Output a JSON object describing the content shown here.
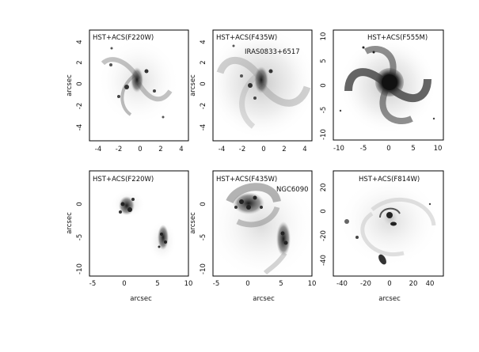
{
  "figure": {
    "axis_unit_label": "arcsec",
    "panels": [
      {
        "id": "top-left",
        "filter_label": "HST+ACS(F220W)",
        "object_label": "",
        "x_ticks": [
          "-4",
          "-2",
          "0",
          "2",
          "4"
        ],
        "y_ticks": [
          "4",
          "2",
          "0",
          "-2",
          "-4"
        ],
        "x_axis_label": "",
        "y_axis_label": "arcsec"
      },
      {
        "id": "top-middle",
        "filter_label": "HST+ACS(F435W)",
        "object_label": "IRAS0833+6517",
        "x_ticks": [
          "-4",
          "-2",
          "0",
          "2",
          "4"
        ],
        "y_ticks": [
          "4",
          "2",
          "0",
          "-2",
          "-4"
        ],
        "x_axis_label": "",
        "y_axis_label": "arcsec"
      },
      {
        "id": "top-right",
        "filter_label": "HST+ACS(F555M)",
        "object_label": "",
        "x_ticks": [
          "-10",
          "-5",
          "0",
          "5",
          "10"
        ],
        "y_ticks": [
          "10",
          "5",
          "0",
          "-5",
          "-10"
        ],
        "x_axis_label": "",
        "y_axis_label": ""
      },
      {
        "id": "bottom-left",
        "filter_label": "HST+ACS(F220W)",
        "object_label": "",
        "x_ticks": [
          "-5",
          "0",
          "5",
          "10"
        ],
        "y_ticks": [
          "0",
          "-5",
          "-10"
        ],
        "x_axis_label": "arcsec",
        "y_axis_label": "arcsec"
      },
      {
        "id": "bottom-middle",
        "filter_label": "HST+ACS(F435W)",
        "object_label": "NGC6090",
        "x_ticks": [
          "-5",
          "0",
          "5",
          "10"
        ],
        "y_ticks": [
          "0",
          "-5",
          "-10"
        ],
        "x_axis_label": "arcsec",
        "y_axis_label": "arcsec"
      },
      {
        "id": "bottom-right",
        "filter_label": "HST+ACS(F814W)",
        "object_label": "",
        "x_ticks": [
          "-40",
          "-20",
          "0",
          "20",
          "40"
        ],
        "y_ticks": [
          "20",
          "0",
          "-20",
          "-40"
        ],
        "x_axis_label": "arcsec",
        "y_axis_label": ""
      }
    ]
  }
}
